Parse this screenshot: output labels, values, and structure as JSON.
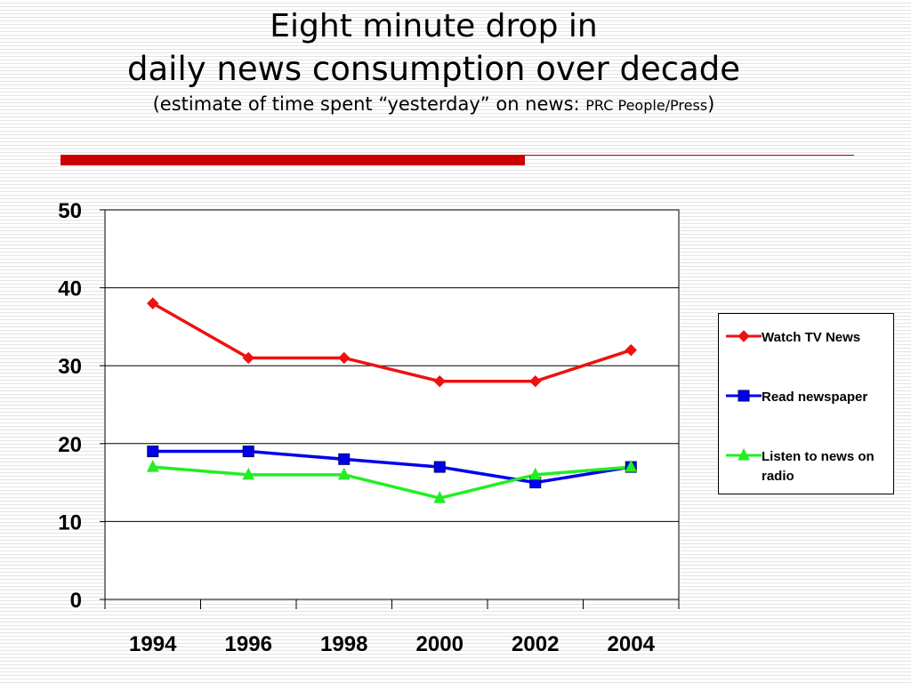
{
  "slide": {
    "title_line1": "Eight minute drop in",
    "title_line2": "daily news consumption over decade",
    "subtitle_open": "(estimate of time spent “yesterday” on news: ",
    "subtitle_source": "PRC People/Press",
    "subtitle_close": ")",
    "accent_color": "#cc0000"
  },
  "chart_data": {
    "type": "line",
    "title": "",
    "xlabel": "",
    "ylabel": "",
    "categories": [
      "1994",
      "1996",
      "1998",
      "2000",
      "2002",
      "2004"
    ],
    "ylim": [
      0,
      50
    ],
    "yticks": [
      0,
      10,
      20,
      30,
      40,
      50
    ],
    "grid": true,
    "legend_position": "right",
    "series": [
      {
        "name": "Watch TV News",
        "values": [
          38,
          31,
          31,
          28,
          28,
          32
        ],
        "color": "#ee1111",
        "marker": "diamond"
      },
      {
        "name": "Read newspaper",
        "values": [
          19,
          19,
          18,
          17,
          15,
          17
        ],
        "color": "#0000ee",
        "marker": "square"
      },
      {
        "name": "Listen to news on radio",
        "values": [
          17,
          16,
          16,
          13,
          16,
          17
        ],
        "color": "#22ee22",
        "marker": "triangle"
      }
    ]
  }
}
